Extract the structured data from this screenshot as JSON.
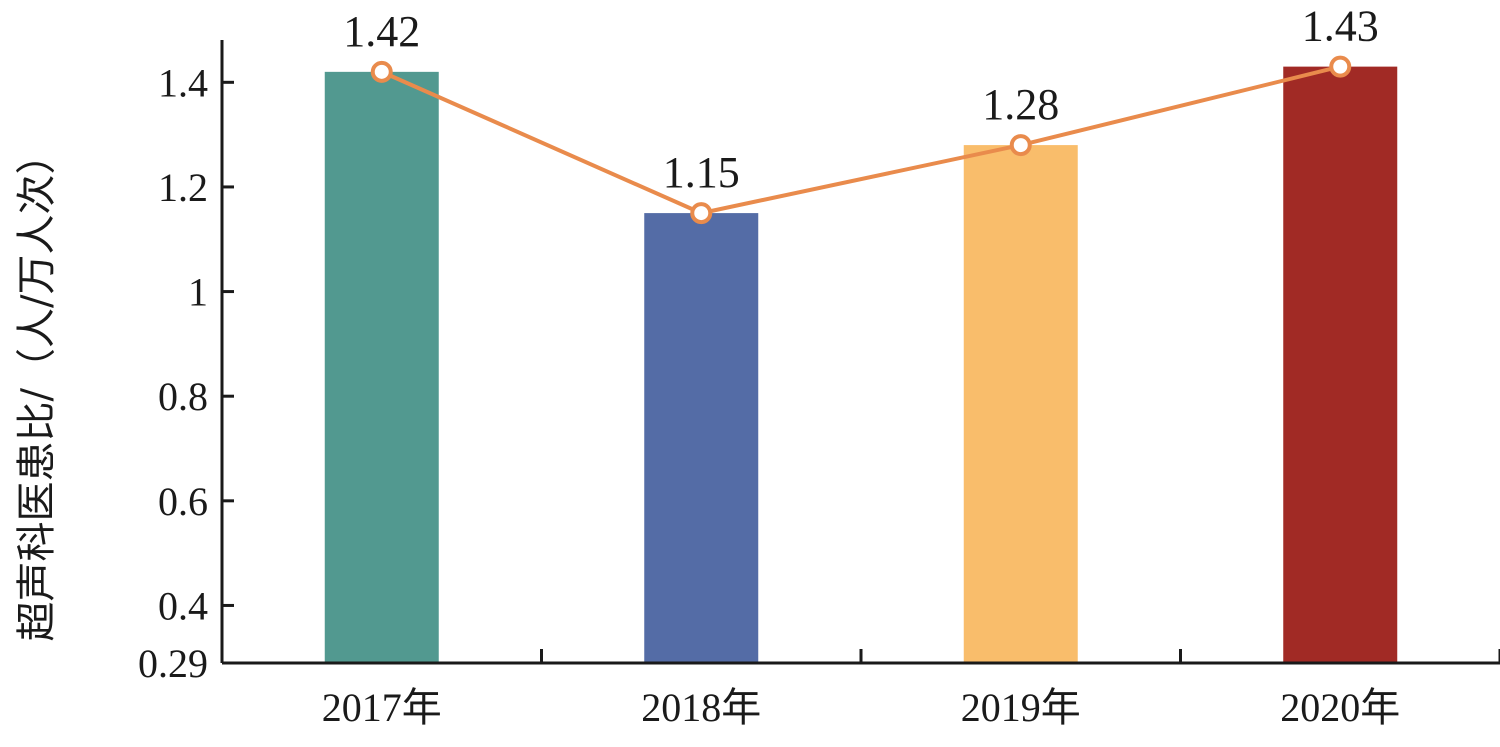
{
  "chart_data": {
    "type": "bar",
    "categories": [
      "2017年",
      "2018年",
      "2019年",
      "2020年"
    ],
    "values": [
      1.42,
      1.15,
      1.28,
      1.43
    ],
    "bar_colors": [
      "#529990",
      "#546CA6",
      "#F9BD6B",
      "#A12A25"
    ],
    "line": {
      "values": [
        1.42,
        1.15,
        1.28,
        1.43
      ],
      "color": "#E98B4C",
      "marker_fill": "#ffffff"
    },
    "data_labels": [
      "1.42",
      "1.15",
      "1.28",
      "1.43"
    ],
    "title": "",
    "xlabel": "",
    "ylabel": "超声科医患比/（人/万人次）",
    "ylim": [
      0.29,
      1.5
    ],
    "yticks": [
      0.29,
      0.4,
      0.6,
      0.8,
      1,
      1.2,
      1.4
    ],
    "ytick_labels": [
      "0.29",
      "0.4",
      "0.6",
      "0.8",
      "1",
      "1.2",
      "1.4"
    ],
    "grid": false,
    "legend": "none"
  }
}
